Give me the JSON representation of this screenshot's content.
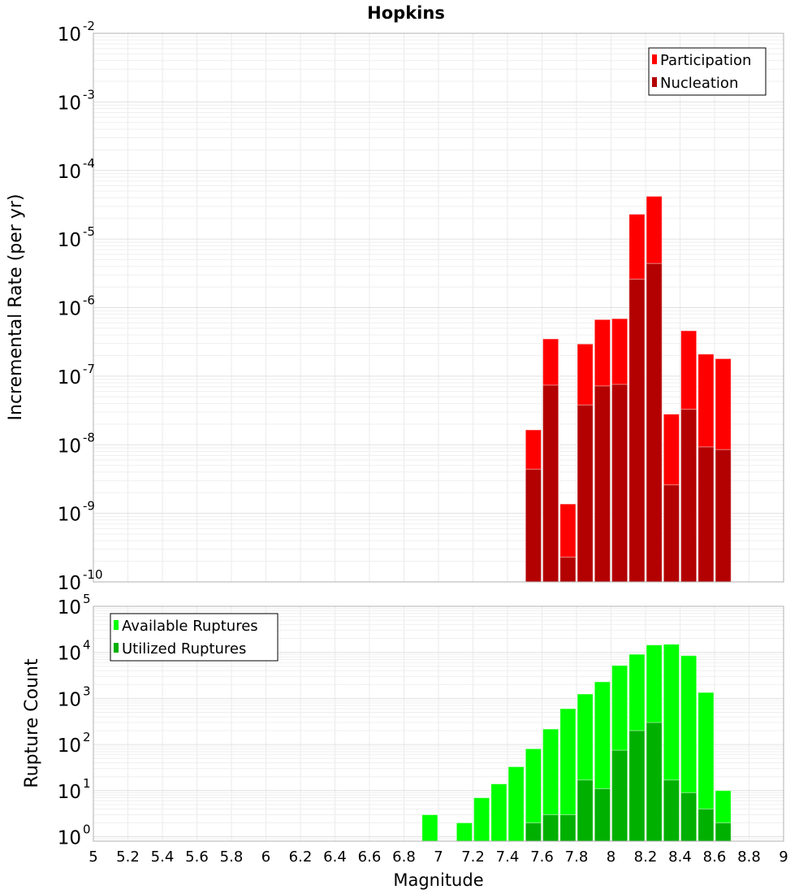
{
  "chart_data": [
    {
      "type": "bar",
      "title": "Hopkins",
      "xlabel": "Magnitude",
      "ylabel": "Incremental Rate (per yr)",
      "yscale": "log",
      "ylim": [
        1e-10,
        0.01
      ],
      "xlim": [
        5,
        9
      ],
      "bin_width": 0.1,
      "grid": true,
      "legend_position": "top-right",
      "ytick_exponents": [
        -10,
        -9,
        -8,
        -7,
        -6,
        -5,
        -4,
        -3,
        -2
      ],
      "x": [
        7.55,
        7.65,
        7.75,
        7.85,
        7.95,
        8.05,
        8.15,
        8.25,
        8.35,
        8.45,
        8.55,
        8.65
      ],
      "series": [
        {
          "name": "Participation",
          "color": "#ff0000",
          "values": [
            1.65e-08,
            3.5e-07,
            1.37e-09,
            2.95e-07,
            6.7e-07,
            6.9e-07,
            2.3e-05,
            4.2e-05,
            2.8e-08,
            4.6e-07,
            2.1e-07,
            1.8e-07
          ]
        },
        {
          "name": "Nucleation",
          "color": "#b30000",
          "values": [
            4.4e-09,
            7.4e-08,
            2.3e-10,
            3.8e-08,
            7.2e-08,
            7.6e-08,
            2.6e-06,
            4.4e-06,
            2.6e-09,
            3.3e-08,
            9.3e-09,
            8.5e-09
          ]
        }
      ]
    },
    {
      "type": "bar",
      "xlabel": "Magnitude",
      "ylabel": "Rupture Count",
      "yscale": "log",
      "ylim": [
        0.8,
        100000.0
      ],
      "xlim": [
        5,
        9
      ],
      "bin_width": 0.1,
      "grid": true,
      "legend_position": "top-left",
      "ytick_exponents": [
        0,
        1,
        2,
        3,
        4,
        5
      ],
      "xticks": [
        "5",
        "5.2",
        "5.4",
        "5.6",
        "5.8",
        "6",
        "6.2",
        "6.4",
        "6.6",
        "6.8",
        "7",
        "7.2",
        "7.4",
        "7.6",
        "7.8",
        "8",
        "8.2",
        "8.4",
        "8.6",
        "8.8",
        "9"
      ],
      "x": [
        6.95,
        7.15,
        7.25,
        7.35,
        7.45,
        7.55,
        7.65,
        7.75,
        7.85,
        7.95,
        8.05,
        8.15,
        8.25,
        8.35,
        8.45,
        8.55,
        8.65
      ],
      "series": [
        {
          "name": "Available Ruptures",
          "color": "#00ff00",
          "values": [
            3,
            2,
            7,
            14,
            33,
            81,
            217,
            600,
            1250,
            2300,
            5200,
            9100,
            14500,
            15000,
            8500,
            1350,
            10
          ]
        },
        {
          "name": "Utilized Ruptures",
          "color": "#00b000",
          "values": [
            null,
            null,
            null,
            null,
            null,
            2,
            3,
            3,
            17,
            11,
            75,
            200,
            300,
            17,
            9,
            4,
            2
          ]
        }
      ]
    }
  ]
}
